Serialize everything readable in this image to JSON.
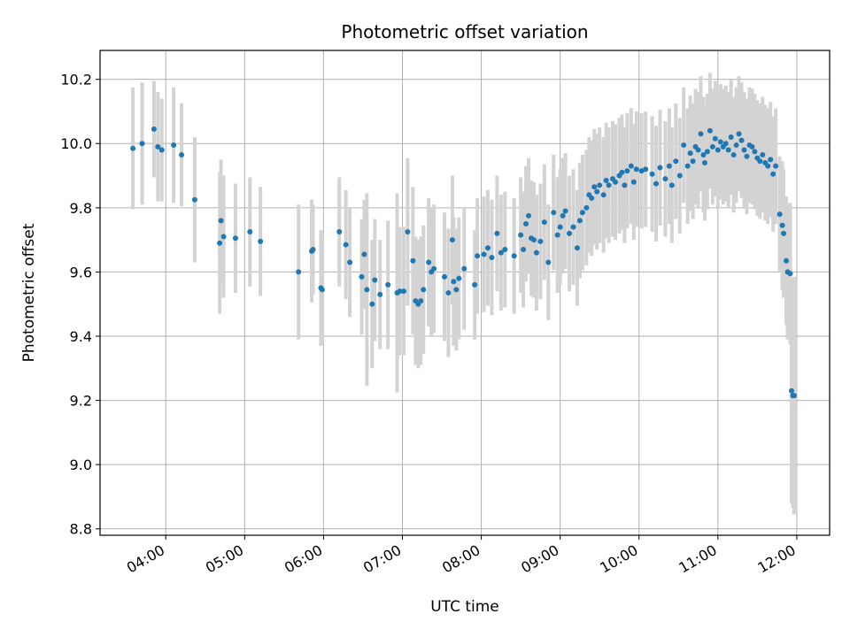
{
  "chart_data": {
    "type": "scatter",
    "title": "Photometric offset variation",
    "xlabel": "UTC time",
    "ylabel": "Photometric offset",
    "x_ticks": [
      "04:00",
      "05:00",
      "06:00",
      "07:00",
      "08:00",
      "09:00",
      "10:00",
      "11:00",
      "12:00"
    ],
    "y_ticks": [
      "8.8",
      "9.0",
      "9.2",
      "9.4",
      "9.6",
      "9.8",
      "10.0",
      "10.2"
    ],
    "xlim": [
      "03:10",
      "12:25"
    ],
    "ylim": [
      8.78,
      10.29
    ],
    "grid": true,
    "colors": {
      "marker": "#1f77b4",
      "errorbar": "#d3d3d3",
      "grid": "#b0b0b0"
    },
    "series": [
      {
        "points": [
          [
            "03:35",
            9.985,
            0.19
          ],
          [
            "03:42",
            10.0,
            0.19
          ],
          [
            "03:51",
            10.045,
            0.15
          ],
          [
            "03:54",
            9.99,
            0.17
          ],
          [
            "03:57",
            9.98,
            0.16
          ],
          [
            "04:06",
            9.995,
            0.18
          ],
          [
            "04:12",
            9.965,
            0.16
          ],
          [
            "04:22",
            9.825,
            0.195
          ],
          [
            "04:41",
            9.69,
            0.22
          ],
          [
            "04:42",
            9.76,
            0.19
          ],
          [
            "04:44",
            9.71,
            0.19
          ],
          [
            "04:53",
            9.705,
            0.17
          ],
          [
            "05:04",
            9.725,
            0.17
          ],
          [
            "05:12",
            9.695,
            0.17
          ],
          [
            "05:41",
            9.6,
            0.21
          ],
          [
            "05:51",
            9.665,
            0.16
          ],
          [
            "05:52",
            9.67,
            0.14
          ],
          [
            "05:58",
            9.55,
            0.18
          ],
          [
            "05:59",
            9.545,
            0.17
          ],
          [
            "06:12",
            9.725,
            0.17
          ],
          [
            "06:17",
            9.685,
            0.17
          ],
          [
            "06:20",
            9.63,
            0.17
          ],
          [
            "06:29",
            9.585,
            0.18
          ],
          [
            "06:31",
            9.655,
            0.17
          ],
          [
            "06:33",
            9.545,
            0.3
          ],
          [
            "06:37",
            9.5,
            0.2
          ],
          [
            "06:39",
            9.575,
            0.19
          ],
          [
            "06:43",
            9.53,
            0.17
          ],
          [
            "06:49",
            9.56,
            0.2
          ],
          [
            "06:56",
            9.535,
            0.31
          ],
          [
            "06:58",
            9.54,
            0.2
          ],
          [
            "07:01",
            9.54,
            0.2
          ],
          [
            "07:04",
            9.725,
            0.23
          ],
          [
            "07:08",
            9.635,
            0.23
          ],
          [
            "07:10",
            9.51,
            0.2
          ],
          [
            "07:12",
            9.5,
            0.2
          ],
          [
            "07:14",
            9.51,
            0.2
          ],
          [
            "07:16",
            9.545,
            0.2
          ],
          [
            "07:20",
            9.63,
            0.2
          ],
          [
            "07:22",
            9.6,
            0.2
          ],
          [
            "07:24",
            9.61,
            0.2
          ],
          [
            "07:32",
            9.585,
            0.2
          ],
          [
            "07:35",
            9.535,
            0.2
          ],
          [
            "07:38",
            9.7,
            0.2
          ],
          [
            "07:39",
            9.57,
            0.2
          ],
          [
            "07:41",
            9.545,
            0.19
          ],
          [
            "07:43",
            9.58,
            0.19
          ],
          [
            "07:47",
            9.61,
            0.19
          ],
          [
            "07:55",
            9.56,
            0.17
          ],
          [
            "07:57",
            9.65,
            0.18
          ],
          [
            "08:02",
            9.655,
            0.18
          ],
          [
            "08:05",
            9.675,
            0.18
          ],
          [
            "08:08",
            9.645,
            0.18
          ],
          [
            "08:12",
            9.72,
            0.18
          ],
          [
            "08:15",
            9.66,
            0.18
          ],
          [
            "08:18",
            9.67,
            0.18
          ],
          [
            "08:25",
            9.65,
            0.18
          ],
          [
            "08:30",
            9.715,
            0.18
          ],
          [
            "08:32",
            9.67,
            0.18
          ],
          [
            "08:34",
            9.75,
            0.18
          ],
          [
            "08:36",
            9.775,
            0.18
          ],
          [
            "08:38",
            9.705,
            0.18
          ],
          [
            "08:40",
            9.7,
            0.18
          ],
          [
            "08:42",
            9.66,
            0.18
          ],
          [
            "08:45",
            9.695,
            0.18
          ],
          [
            "08:48",
            9.755,
            0.18
          ],
          [
            "08:51",
            9.63,
            0.18
          ],
          [
            "08:55",
            9.785,
            0.18
          ],
          [
            "08:58",
            9.715,
            0.18
          ],
          [
            "09:00",
            9.74,
            0.18
          ],
          [
            "09:02",
            9.775,
            0.18
          ],
          [
            "09:04",
            9.79,
            0.18
          ],
          [
            "09:07",
            9.72,
            0.18
          ],
          [
            "09:10",
            9.74,
            0.18
          ],
          [
            "09:13",
            9.675,
            0.18
          ],
          [
            "09:15",
            9.76,
            0.18
          ],
          [
            "09:17",
            9.785,
            0.18
          ],
          [
            "09:20",
            9.8,
            0.18
          ],
          [
            "09:22",
            9.84,
            0.18
          ],
          [
            "09:24",
            9.83,
            0.18
          ],
          [
            "09:26",
            9.865,
            0.18
          ],
          [
            "09:28",
            9.85,
            0.18
          ],
          [
            "09:30",
            9.87,
            0.18
          ],
          [
            "09:33",
            9.84,
            0.18
          ],
          [
            "09:35",
            9.885,
            0.18
          ],
          [
            "09:37",
            9.87,
            0.18
          ],
          [
            "09:40",
            9.89,
            0.18
          ],
          [
            "09:42",
            9.88,
            0.18
          ],
          [
            "09:45",
            9.9,
            0.18
          ],
          [
            "09:47",
            9.91,
            0.18
          ],
          [
            "09:49",
            9.87,
            0.18
          ],
          [
            "09:51",
            9.915,
            0.18
          ],
          [
            "09:54",
            9.93,
            0.18
          ],
          [
            "09:56",
            9.88,
            0.18
          ],
          [
            "09:58",
            9.92,
            0.18
          ],
          [
            "10:02",
            9.915,
            0.18
          ],
          [
            "10:05",
            9.92,
            0.18
          ],
          [
            "10:10",
            9.905,
            0.18
          ],
          [
            "10:13",
            9.875,
            0.18
          ],
          [
            "10:16",
            9.925,
            0.18
          ],
          [
            "10:20",
            9.89,
            0.18
          ],
          [
            "10:23",
            9.93,
            0.18
          ],
          [
            "10:25",
            9.87,
            0.18
          ],
          [
            "10:28",
            9.945,
            0.18
          ],
          [
            "10:31",
            9.9,
            0.18
          ],
          [
            "10:34",
            9.995,
            0.18
          ],
          [
            "10:37",
            9.93,
            0.18
          ],
          [
            "10:39",
            9.97,
            0.18
          ],
          [
            "10:41",
            9.945,
            0.18
          ],
          [
            "10:43",
            9.99,
            0.18
          ],
          [
            "10:45",
            9.98,
            0.18
          ],
          [
            "10:47",
            10.03,
            0.18
          ],
          [
            "10:49",
            9.965,
            0.18
          ],
          [
            "10:50",
            9.94,
            0.18
          ],
          [
            "10:52",
            9.975,
            0.18
          ],
          [
            "10:54",
            10.04,
            0.18
          ],
          [
            "10:56",
            9.99,
            0.18
          ],
          [
            "10:58",
            10.015,
            0.18
          ],
          [
            "11:00",
            9.98,
            0.18
          ],
          [
            "11:02",
            10.005,
            0.18
          ],
          [
            "11:04",
            9.99,
            0.18
          ],
          [
            "11:06",
            10.0,
            0.18
          ],
          [
            "11:08",
            9.98,
            0.18
          ],
          [
            "11:10",
            10.02,
            0.18
          ],
          [
            "11:12",
            9.965,
            0.18
          ],
          [
            "11:14",
            9.995,
            0.18
          ],
          [
            "11:16",
            10.03,
            0.18
          ],
          [
            "11:18",
            10.01,
            0.18
          ],
          [
            "11:20",
            9.98,
            0.18
          ],
          [
            "11:22",
            9.96,
            0.18
          ],
          [
            "11:24",
            9.995,
            0.18
          ],
          [
            "11:26",
            9.99,
            0.18
          ],
          [
            "11:28",
            9.975,
            0.18
          ],
          [
            "11:30",
            9.955,
            0.18
          ],
          [
            "11:32",
            9.945,
            0.18
          ],
          [
            "11:34",
            9.965,
            0.18
          ],
          [
            "11:36",
            9.94,
            0.18
          ],
          [
            "11:38",
            9.93,
            0.18
          ],
          [
            "11:40",
            9.95,
            0.18
          ],
          [
            "11:42",
            9.905,
            0.18
          ],
          [
            "11:44",
            9.93,
            0.18
          ],
          [
            "11:47",
            9.78,
            0.18
          ],
          [
            "11:49",
            9.745,
            0.2
          ],
          [
            "11:50",
            9.72,
            0.2
          ],
          [
            "11:52",
            9.635,
            0.2
          ],
          [
            "11:53",
            9.6,
            0.21
          ],
          [
            "11:55",
            9.595,
            0.22
          ],
          [
            "11:56",
            9.23,
            0.35
          ],
          [
            "11:57",
            9.215,
            0.35
          ],
          [
            "11:58",
            9.215,
            0.37
          ]
        ]
      }
    ]
  }
}
